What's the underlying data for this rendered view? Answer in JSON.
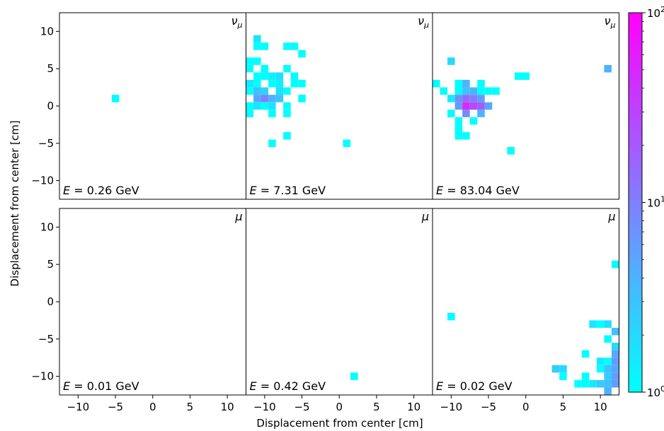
{
  "chart_data": {
    "type": "heatmap",
    "figure": {
      "xlabel": "Displacement from center [cm]",
      "ylabel": "Displacement from center [cm]",
      "grid": false
    },
    "axis": {
      "xlim": [
        -12.5,
        12.5
      ],
      "ylim": [
        -12.5,
        12.5
      ],
      "xticks": [
        -10,
        -5,
        0,
        5,
        10
      ],
      "xtick_labels": [
        "−10",
        "−5",
        "0",
        "5",
        "10"
      ],
      "yticks": [
        10,
        5,
        0,
        -5,
        -10
      ],
      "ytick_labels": [
        "10",
        "5",
        "0",
        "−5",
        "−10"
      ]
    },
    "colorbar": {
      "scale": "log",
      "range": [
        1,
        100
      ],
      "ticks": [
        {
          "value": 100,
          "base": "10",
          "exp": "2"
        },
        {
          "value": 10,
          "base": "10",
          "exp": "1"
        },
        {
          "value": 1,
          "base": "10",
          "exp": "0"
        }
      ],
      "color_low": "#00ffff",
      "color_high": "#ff00ff"
    },
    "panels": [
      {
        "particle_symbol": "ν",
        "particle_sub": "μ",
        "energy_text": " = 0.26 GeV",
        "bins": [
          [
            -5,
            1,
            1
          ]
        ]
      },
      {
        "particle_symbol": "ν",
        "particle_sub": "μ",
        "energy_text": " = 7.31 GeV",
        "bins": [
          [
            -11,
            9,
            1.6
          ],
          [
            -11,
            8,
            1
          ],
          [
            -10,
            8,
            1
          ],
          [
            -7,
            8,
            1
          ],
          [
            -6,
            8,
            1
          ],
          [
            -5,
            7,
            1
          ],
          [
            -12,
            6,
            1
          ],
          [
            -11,
            6,
            1
          ],
          [
            -12,
            5,
            1
          ],
          [
            -10,
            5,
            1
          ],
          [
            -7,
            5,
            1
          ],
          [
            -11,
            4,
            1
          ],
          [
            -10,
            4,
            1
          ],
          [
            -9,
            4,
            1.3
          ],
          [
            -8,
            4,
            1.8
          ],
          [
            -6,
            4,
            1
          ],
          [
            -11,
            3,
            1
          ],
          [
            -12,
            3,
            1.6
          ],
          [
            -9,
            3,
            1
          ],
          [
            -8,
            3,
            1.3
          ],
          [
            -6,
            3,
            1
          ],
          [
            -5,
            3,
            1
          ],
          [
            -12,
            2,
            1
          ],
          [
            -11,
            2,
            3
          ],
          [
            -10,
            2,
            2.2
          ],
          [
            -8,
            2,
            1.8
          ],
          [
            -7,
            2,
            1
          ],
          [
            -11,
            1,
            5
          ],
          [
            -10,
            1,
            10
          ],
          [
            -9,
            1,
            4
          ],
          [
            -8,
            1,
            3
          ],
          [
            -5,
            1,
            1
          ],
          [
            -12,
            0,
            1
          ],
          [
            -11,
            0,
            1.6
          ],
          [
            -10,
            0,
            1
          ],
          [
            -9,
            0,
            1.6
          ],
          [
            -7,
            0,
            1
          ],
          [
            -12,
            -1,
            1
          ],
          [
            -9,
            -1,
            1
          ],
          [
            -7,
            -1,
            1
          ],
          [
            -7,
            -4,
            1
          ],
          [
            -9,
            -5,
            1
          ],
          [
            1,
            -5,
            1
          ]
        ]
      },
      {
        "particle_symbol": "ν",
        "particle_sub": "μ",
        "energy_text": " = 83.04 GeV",
        "bins": [
          [
            -10,
            6,
            2
          ],
          [
            11,
            5,
            4
          ],
          [
            -1,
            4,
            1
          ],
          [
            0,
            4,
            1
          ],
          [
            -12,
            3,
            1
          ],
          [
            -9,
            3,
            1
          ],
          [
            -8,
            3,
            4
          ],
          [
            -6,
            3,
            1
          ],
          [
            -11,
            2,
            1
          ],
          [
            -9,
            2,
            1
          ],
          [
            -8,
            2,
            3
          ],
          [
            -7,
            2,
            4
          ],
          [
            -6,
            2,
            1
          ],
          [
            -5,
            2,
            1
          ],
          [
            -4,
            2,
            1
          ],
          [
            -10,
            1,
            1.5
          ],
          [
            -9,
            1,
            7
          ],
          [
            -8,
            1,
            15
          ],
          [
            -7,
            1,
            10
          ],
          [
            -6,
            1,
            6
          ],
          [
            -9,
            0,
            6
          ],
          [
            -8,
            0,
            45
          ],
          [
            -7,
            0,
            25
          ],
          [
            -6,
            0,
            20
          ],
          [
            -5,
            0,
            5
          ],
          [
            -10,
            -1,
            1
          ],
          [
            -8,
            -1,
            8
          ],
          [
            -6,
            -1,
            4
          ],
          [
            -9,
            -2,
            1
          ],
          [
            -7,
            -2,
            1
          ],
          [
            -9,
            -3,
            1
          ],
          [
            -9,
            -4,
            1
          ],
          [
            -8,
            -4,
            1
          ],
          [
            -2,
            -6,
            1
          ]
        ]
      },
      {
        "particle_symbol": "μ",
        "particle_sub": "",
        "energy_text": " = 0.01 GeV",
        "bins": []
      },
      {
        "particle_symbol": "μ",
        "particle_sub": "",
        "energy_text": " = 0.42 GeV",
        "bins": [
          [
            2,
            -10,
            1
          ]
        ]
      },
      {
        "particle_symbol": "μ",
        "particle_sub": "",
        "energy_text": " = 0.02 GeV",
        "bins": [
          [
            12,
            5,
            1
          ],
          [
            -10,
            -2,
            1
          ],
          [
            9,
            -3,
            1.5
          ],
          [
            10,
            -3,
            1
          ],
          [
            11,
            -3,
            1.8
          ],
          [
            12,
            -4,
            3
          ],
          [
            11,
            -5,
            1
          ],
          [
            12,
            -6,
            2
          ],
          [
            8,
            -7,
            1
          ],
          [
            12,
            -7,
            5
          ],
          [
            10,
            -8,
            1.5
          ],
          [
            11,
            -8,
            1
          ],
          [
            12,
            -8,
            6
          ],
          [
            4,
            -9,
            2.5
          ],
          [
            5,
            -9,
            2
          ],
          [
            10,
            -9,
            1
          ],
          [
            11,
            -9,
            3
          ],
          [
            12,
            -9,
            5
          ],
          [
            5,
            -10,
            1
          ],
          [
            8,
            -10,
            1
          ],
          [
            11,
            -10,
            2.5
          ],
          [
            12,
            -10,
            6
          ],
          [
            7,
            -11,
            1
          ],
          [
            8,
            -11,
            1
          ],
          [
            9,
            -11,
            1.5
          ],
          [
            10,
            -11,
            2.5
          ],
          [
            11,
            -11,
            3
          ],
          [
            12,
            -11,
            6
          ],
          [
            11,
            -12,
            4
          ]
        ]
      }
    ]
  }
}
